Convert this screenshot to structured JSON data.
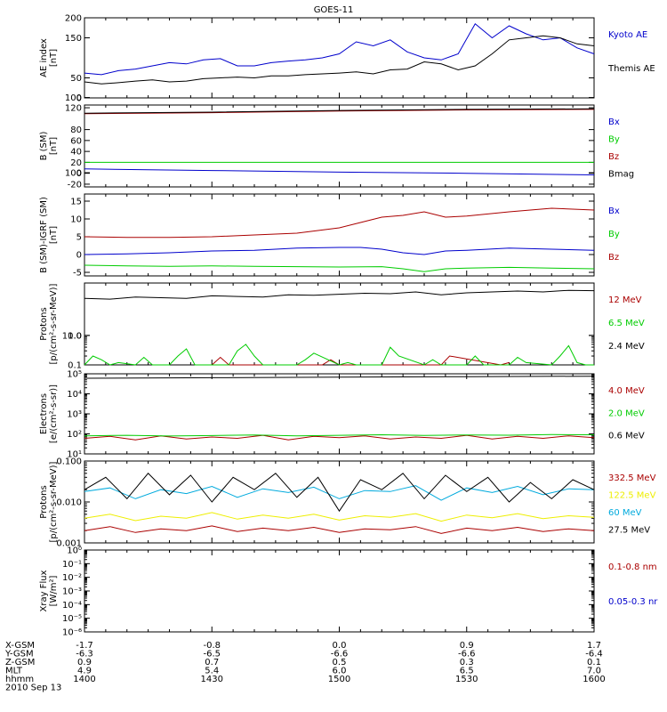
{
  "title": "GOES-11",
  "x_axis": {
    "rows": [
      {
        "label": "X-GSM",
        "values": [
          "-1.7",
          "-0.8",
          "0.0",
          "0.9",
          "1.7"
        ]
      },
      {
        "label": "Y-GSM",
        "values": [
          "-6.3",
          "-6.5",
          "-6.6",
          "-6.6",
          "-6.4"
        ]
      },
      {
        "label": "Z-GSM",
        "values": [
          "0.9",
          "0.7",
          "0.5",
          "0.3",
          "0.1"
        ]
      },
      {
        "label": "MLT",
        "values": [
          "4.9",
          "5.4",
          "6.0",
          "6.5",
          "7.0"
        ]
      },
      {
        "label": "hhmm",
        "values": [
          "1400",
          "1430",
          "1500",
          "1530",
          "1600"
        ]
      }
    ],
    "date": "2010 Sep 13"
  },
  "colors": {
    "black": "#000000",
    "blue": "#0000cc",
    "red": "#aa0000",
    "green": "#00cc00",
    "cyan": "#00aadd",
    "yellow": "#eeee00"
  },
  "chart_data": [
    {
      "id": "ae",
      "type": "line",
      "ylabel": [
        "AE index",
        "[nT]"
      ],
      "yticks": [
        "0",
        "50",
        "100",
        "150",
        "200"
      ],
      "ylim": [
        0,
        200
      ],
      "series": [
        {
          "name": "Kyoto AE",
          "color": "#0000cc",
          "x": [
            0,
            4,
            8,
            12,
            16,
            20,
            24,
            28,
            32,
            36,
            40,
            44,
            48,
            52,
            56,
            60,
            64,
            68,
            72,
            76,
            80,
            84,
            88,
            92,
            96,
            100,
            104,
            108,
            112,
            116,
            120
          ],
          "values": [
            62,
            58,
            68,
            72,
            80,
            88,
            85,
            95,
            98,
            80,
            80,
            88,
            92,
            95,
            100,
            110,
            140,
            130,
            145,
            115,
            100,
            95,
            110,
            185,
            150,
            180,
            160,
            145,
            150,
            125,
            110
          ]
        },
        {
          "name": "Themis AE",
          "color": "#000000",
          "x": [
            0,
            4,
            8,
            12,
            16,
            20,
            24,
            28,
            32,
            36,
            40,
            44,
            48,
            52,
            56,
            60,
            64,
            68,
            72,
            76,
            80,
            84,
            88,
            92,
            96,
            100,
            104,
            108,
            112,
            116,
            120
          ],
          "values": [
            40,
            35,
            38,
            42,
            45,
            40,
            42,
            48,
            50,
            52,
            50,
            55,
            55,
            58,
            60,
            62,
            65,
            60,
            70,
            72,
            90,
            85,
            70,
            80,
            110,
            145,
            150,
            155,
            150,
            135,
            130
          ]
        }
      ]
    },
    {
      "id": "b",
      "type": "line",
      "ylabel": [
        "B (SM)",
        "[nT]"
      ],
      "yticks": [
        "-20",
        "0",
        "20",
        "40",
        "60",
        "80",
        "100",
        "120"
      ],
      "ylim": [
        -25,
        125
      ],
      "series": [
        {
          "name": "Bx",
          "color": "#0000cc",
          "x": [
            0,
            30,
            60,
            90,
            120
          ],
          "values": [
            8,
            5,
            2,
            0,
            -3
          ]
        },
        {
          "name": "By",
          "color": "#00cc00",
          "x": [
            0,
            30,
            60,
            90,
            120
          ],
          "values": [
            20,
            20,
            20,
            20,
            20
          ]
        },
        {
          "name": "Bz",
          "color": "#aa0000",
          "x": [
            0,
            30,
            60,
            90,
            120
          ],
          "values": [
            109,
            111,
            114,
            116,
            117
          ]
        },
        {
          "name": "Bmag",
          "color": "#000000",
          "x": [
            0,
            30,
            60,
            90,
            120
          ],
          "values": [
            110,
            112,
            115,
            117,
            118
          ]
        }
      ]
    },
    {
      "id": "dbs",
      "type": "line",
      "ylabel": [
        "B (SM)-IGRF (SM)",
        "[nT]"
      ],
      "yticks": [
        "-5",
        "0",
        "5",
        "10",
        "15"
      ],
      "ylim": [
        -6,
        17
      ],
      "series": [
        {
          "name": "Bx",
          "color": "#0000cc",
          "x": [
            0,
            10,
            20,
            30,
            40,
            50,
            60,
            65,
            70,
            75,
            80,
            85,
            90,
            100,
            110,
            120
          ],
          "values": [
            0,
            0.2,
            0.5,
            1,
            1.2,
            1.8,
            2,
            2,
            1.5,
            0.5,
            0,
            1,
            1.2,
            1.8,
            1.5,
            1.2
          ]
        },
        {
          "name": "By",
          "color": "#00cc00",
          "x": [
            0,
            10,
            20,
            30,
            40,
            50,
            60,
            70,
            75,
            80,
            85,
            90,
            100,
            110,
            120
          ],
          "values": [
            -3,
            -3.2,
            -3.3,
            -3.2,
            -3.3,
            -3.4,
            -3.5,
            -3.4,
            -4,
            -4.8,
            -4,
            -3.8,
            -3.6,
            -3.8,
            -4
          ]
        },
        {
          "name": "Bz",
          "color": "#aa0000",
          "x": [
            0,
            10,
            20,
            30,
            40,
            50,
            60,
            65,
            70,
            75,
            80,
            85,
            90,
            100,
            110,
            120
          ],
          "values": [
            5,
            4.8,
            4.8,
            5,
            5.5,
            6,
            7.5,
            9,
            10.5,
            11,
            12,
            10.5,
            10.8,
            12,
            13,
            12.5
          ]
        }
      ]
    },
    {
      "id": "protons_hi",
      "type": "line",
      "log": true,
      "ylabel": [
        "Protons",
        "[p/(cm²-s-sr-MeV)]"
      ],
      "yticks": [
        "0.1",
        "1.0",
        "10.0"
      ],
      "ylim": [
        0.1,
        60
      ],
      "series": [
        {
          "name": "12 MeV",
          "color": "#aa0000",
          "x": [
            30,
            32,
            34,
            56,
            58,
            60,
            84,
            86,
            98,
            100
          ],
          "values": [
            0.1,
            0.18,
            0.1,
            0.1,
            0.15,
            0.1,
            0.1,
            0.2,
            0.1,
            0.12
          ]
        },
        {
          "name": "6.5 MeV",
          "color": "#00cc00",
          "x": [
            0,
            2,
            4,
            6,
            8,
            12,
            14,
            16,
            20,
            22,
            24,
            26,
            28,
            34,
            36,
            38,
            40,
            42,
            50,
            52,
            54,
            60,
            62,
            64,
            70,
            72,
            74,
            80,
            82,
            84,
            90,
            92,
            94,
            100,
            102,
            104,
            110,
            112,
            114,
            116,
            118,
            120
          ],
          "values": [
            0.1,
            0.2,
            0.15,
            0.1,
            0.12,
            0.1,
            0.18,
            0.1,
            0.1,
            0.2,
            0.35,
            0.1,
            0.1,
            0.1,
            0.3,
            0.5,
            0.2,
            0.1,
            0.1,
            0.15,
            0.25,
            0.1,
            0.12,
            0.1,
            0.1,
            0.4,
            0.2,
            0.1,
            0.15,
            0.1,
            0.1,
            0.2,
            0.1,
            0.1,
            0.18,
            0.12,
            0.1,
            0.2,
            0.45,
            0.12,
            0.1,
            0.1
          ]
        },
        {
          "name": "2.4 MeV",
          "color": "#000000",
          "x": [
            0,
            6,
            12,
            18,
            24,
            30,
            36,
            42,
            48,
            54,
            60,
            66,
            72,
            78,
            84,
            90,
            96,
            102,
            108,
            114,
            120
          ],
          "values": [
            18,
            17,
            20,
            19,
            18,
            22,
            21,
            20,
            24,
            23,
            25,
            27,
            26,
            30,
            24,
            28,
            30,
            32,
            30,
            34,
            33
          ]
        }
      ]
    },
    {
      "id": "electrons",
      "type": "line",
      "log": true,
      "ylabel": [
        "Electrons",
        "[e/(cm²-s-sr)]"
      ],
      "yticks": [
        "10¹",
        "10²",
        "10³",
        "10⁴",
        "10⁵"
      ],
      "ylim": [
        10,
        100000
      ],
      "series": [
        {
          "name": "4.0 MeV",
          "color": "#aa0000",
          "x": [
            0,
            6,
            12,
            18,
            24,
            30,
            36,
            42,
            48,
            54,
            60,
            66,
            72,
            78,
            84,
            90,
            96,
            102,
            108,
            114,
            120
          ],
          "values": [
            60,
            75,
            50,
            80,
            55,
            70,
            60,
            85,
            50,
            75,
            65,
            80,
            55,
            70,
            60,
            85,
            55,
            75,
            60,
            80,
            65
          ]
        },
        {
          "name": "2.0 MeV",
          "color": "#00cc00",
          "x": [
            0,
            10,
            20,
            30,
            40,
            50,
            60,
            70,
            80,
            90,
            100,
            110,
            120
          ],
          "values": [
            80,
            85,
            78,
            82,
            88,
            80,
            85,
            90,
            84,
            88,
            86,
            92,
            90
          ]
        },
        {
          "name": "0.6 MeV",
          "color": "#000000",
          "x": [
            0,
            30,
            60,
            90,
            120
          ],
          "values": [
            60000,
            64000,
            68000,
            72000,
            76000
          ]
        }
      ]
    },
    {
      "id": "protons_lo",
      "type": "line",
      "log": true,
      "ylabel": [
        "Protons",
        "[p/(cm²-s-sr-MeV)]"
      ],
      "yticks": [
        "0.001",
        "0.010",
        "0.100"
      ],
      "ylim": [
        0.001,
        0.1
      ],
      "series": [
        {
          "name": "332.5 MeV",
          "color": "#aa0000",
          "x": [
            0,
            6,
            12,
            18,
            24,
            30,
            36,
            42,
            48,
            54,
            60,
            66,
            72,
            78,
            84,
            90,
            96,
            102,
            108,
            114,
            120
          ],
          "values": [
            0.002,
            0.0025,
            0.0018,
            0.0022,
            0.002,
            0.0026,
            0.0019,
            0.0023,
            0.002,
            0.0024,
            0.0018,
            0.0022,
            0.0021,
            0.0025,
            0.0017,
            0.0023,
            0.002,
            0.0024,
            0.0019,
            0.0022,
            0.002
          ]
        },
        {
          "name": "122.5 MeV",
          "color": "#eeee00",
          "x": [
            0,
            6,
            12,
            18,
            24,
            30,
            36,
            42,
            48,
            54,
            60,
            66,
            72,
            78,
            84,
            90,
            96,
            102,
            108,
            114,
            120
          ],
          "values": [
            0.004,
            0.005,
            0.0035,
            0.0045,
            0.004,
            0.0055,
            0.0038,
            0.0048,
            0.004,
            0.005,
            0.0036,
            0.0046,
            0.0042,
            0.0052,
            0.0034,
            0.0048,
            0.0041,
            0.0052,
            0.0039,
            0.0046,
            0.0042
          ]
        },
        {
          "name": "60 MeV",
          "color": "#00aadd",
          "x": [
            0,
            6,
            12,
            18,
            24,
            30,
            36,
            42,
            48,
            54,
            60,
            66,
            72,
            78,
            84,
            90,
            96,
            102,
            108,
            114,
            120
          ],
          "values": [
            0.018,
            0.022,
            0.012,
            0.02,
            0.016,
            0.024,
            0.013,
            0.021,
            0.017,
            0.023,
            0.012,
            0.019,
            0.018,
            0.025,
            0.011,
            0.022,
            0.017,
            0.024,
            0.015,
            0.021,
            0.02
          ]
        },
        {
          "name": "27.5 MeV",
          "color": "#000000",
          "x": [
            0,
            5,
            10,
            15,
            20,
            25,
            30,
            35,
            40,
            45,
            50,
            55,
            60,
            65,
            70,
            75,
            80,
            85,
            90,
            95,
            100,
            105,
            110,
            115,
            120
          ],
          "values": [
            0.02,
            0.04,
            0.012,
            0.05,
            0.015,
            0.045,
            0.01,
            0.04,
            0.02,
            0.05,
            0.013,
            0.04,
            0.006,
            0.035,
            0.02,
            0.05,
            0.012,
            0.045,
            0.018,
            0.04,
            0.01,
            0.03,
            0.012,
            0.035,
            0.02
          ]
        }
      ]
    },
    {
      "id": "xray",
      "type": "line",
      "log": true,
      "ylabel": [
        "Xray Flux",
        "[W/m²]"
      ],
      "yticks": [
        "10⁻⁶",
        "10⁻⁵",
        "10⁻⁴",
        "10⁻³",
        "10⁻²",
        "10⁻¹",
        "10⁰"
      ],
      "ylim": [
        1e-06,
        1
      ],
      "series": [
        {
          "name": "0.1-0.8 nm",
          "color": "#aa0000",
          "x": [],
          "values": []
        },
        {
          "name": "0.05-0.3 nr",
          "color": "#0000cc",
          "x": [],
          "values": []
        }
      ]
    }
  ]
}
